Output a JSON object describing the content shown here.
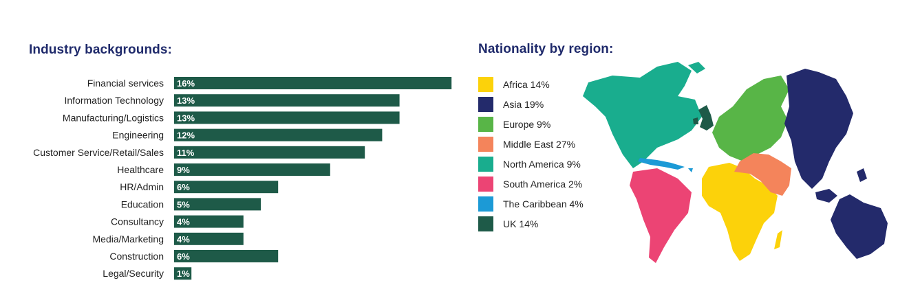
{
  "industry": {
    "title": "Industry backgrounds:"
  },
  "nationality": {
    "title": "Nationality by region:",
    "legend": [
      {
        "label": "Africa 14%",
        "color": "#fcd20a"
      },
      {
        "label": "Asia 19%",
        "color": "#232a6b"
      },
      {
        "label": "Europe 9%",
        "color": "#58b547"
      },
      {
        "label": "Middle East 27%",
        "color": "#f4845b"
      },
      {
        "label": "North America 9%",
        "color": "#19ad8e"
      },
      {
        "label": "South America 2%",
        "color": "#ec4474"
      },
      {
        "label": "The Caribbean 4%",
        "color": "#1c9ad6"
      },
      {
        "label": "UK 14%",
        "color": "#1e5a48"
      }
    ]
  },
  "chart_data": {
    "type": "bar",
    "orientation": "horizontal",
    "categories": [
      "Financial services",
      "Information Technology",
      "Manufacturing/Logistics",
      "Engineering",
      "Customer Service/Retail/Sales",
      "Healthcare",
      "HR/Admin",
      "Education",
      "Consultancy",
      "Media/Marketing",
      "Construction",
      "Legal/Security"
    ],
    "values": [
      16,
      13,
      13,
      12,
      11,
      9,
      6,
      5,
      4,
      4,
      6,
      1
    ],
    "data_labels": [
      "16%",
      "13%",
      "13%",
      "12%",
      "11%",
      "9%",
      "6%",
      "5%",
      "4%",
      "4%",
      "6%",
      "1%"
    ],
    "title": "Industry backgrounds:",
    "xlabel": "",
    "ylabel": "",
    "bar_color": "#1e5a48",
    "label_color": "#ffffff",
    "grid": false
  }
}
